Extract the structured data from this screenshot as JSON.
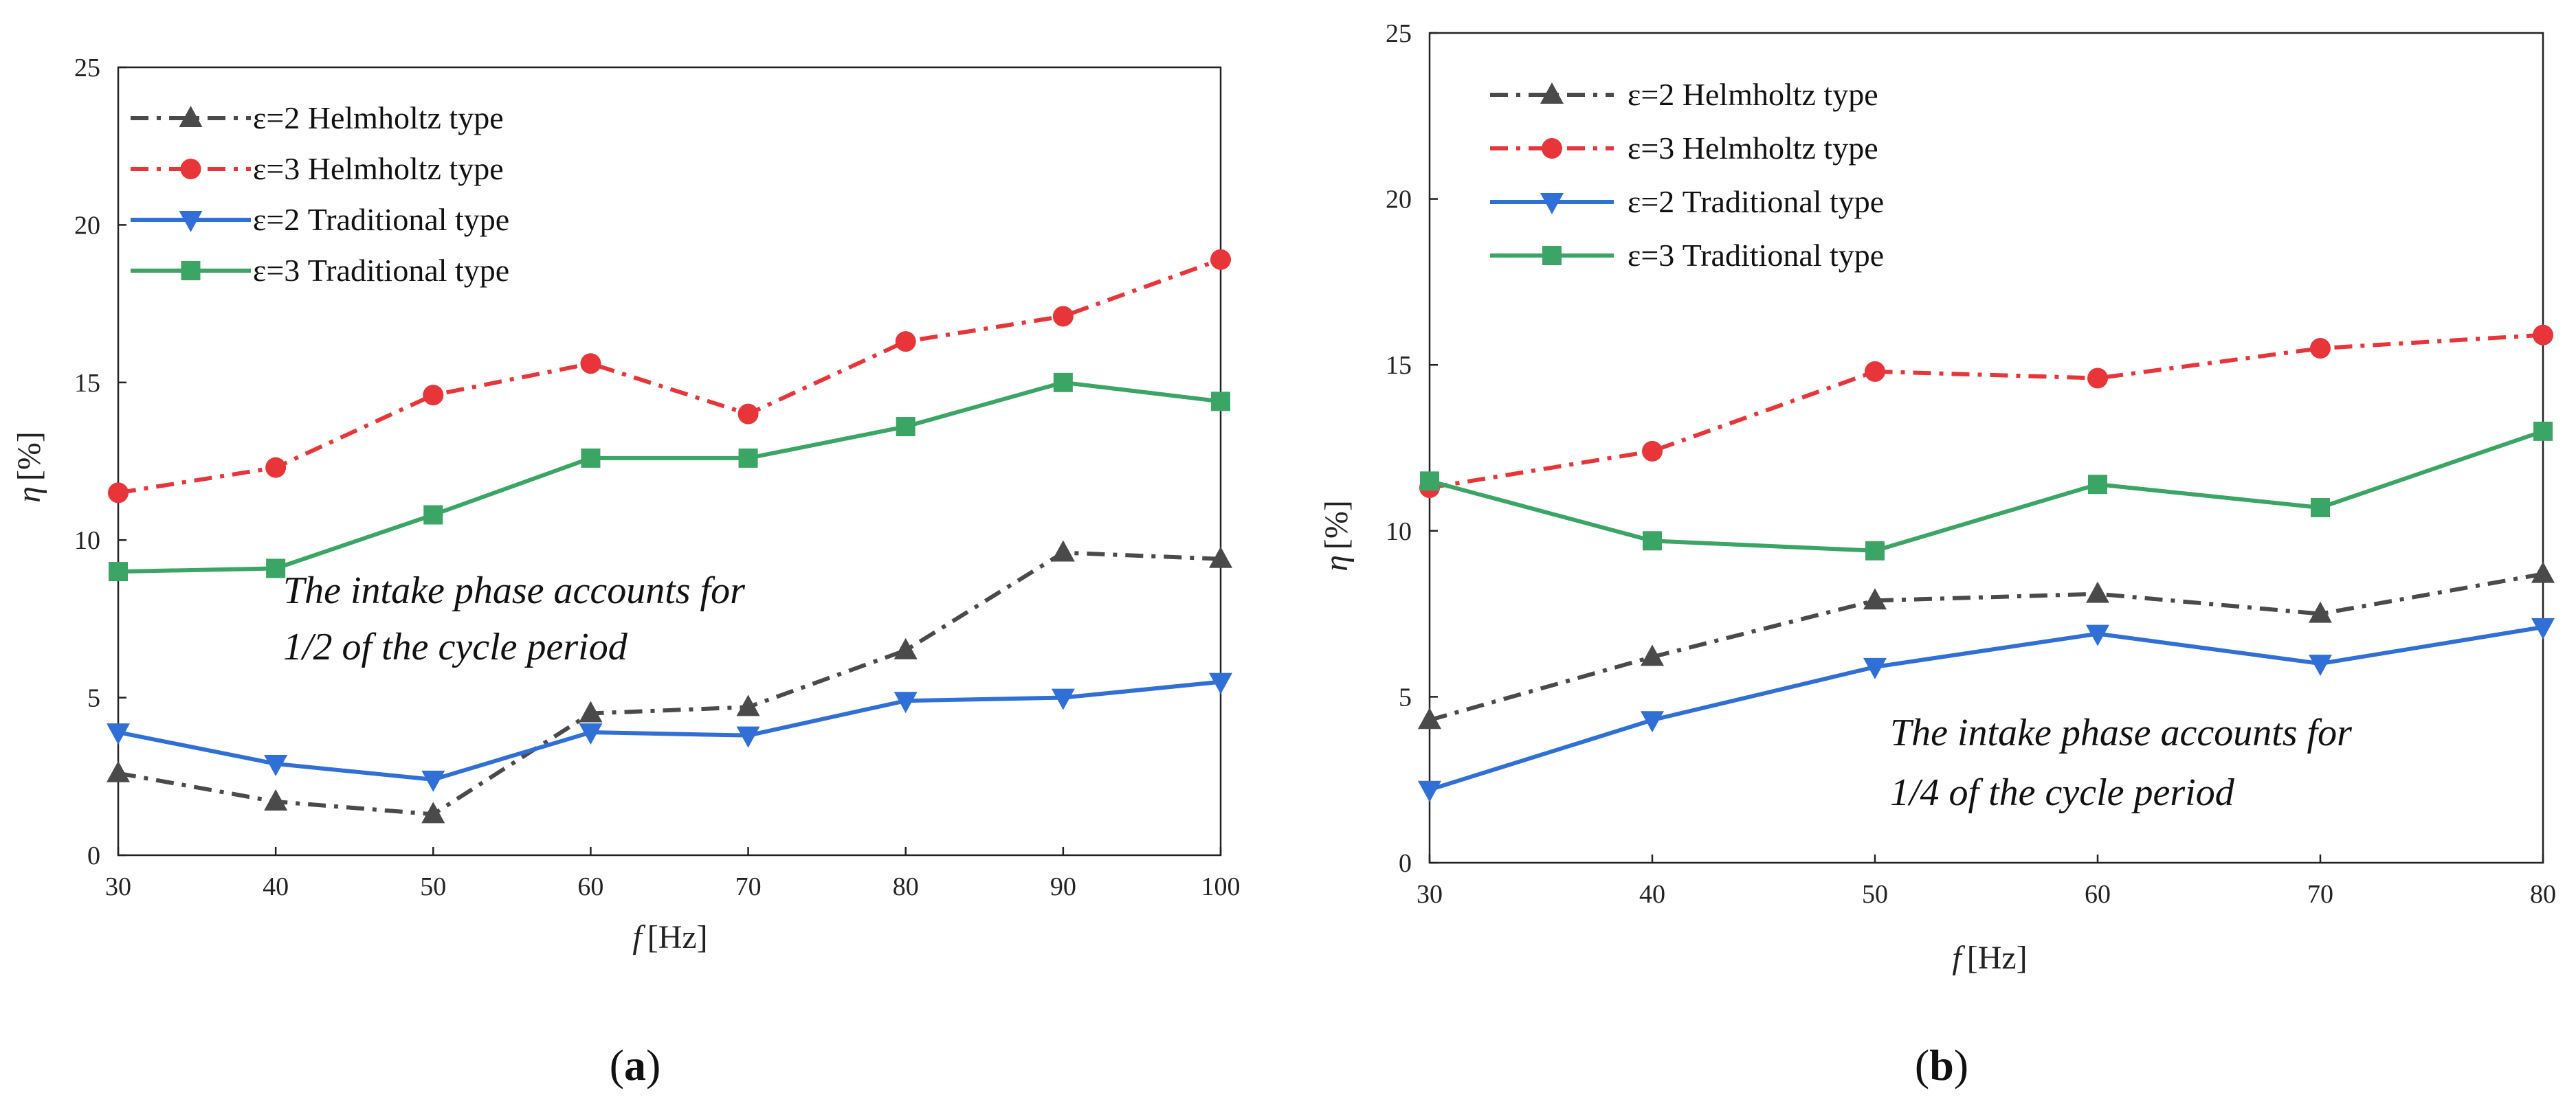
{
  "chart_data": [
    {
      "type": "line",
      "panel": "a",
      "caption": {
        "open": "(",
        "letter": "a",
        "close": ")"
      },
      "xlabel": {
        "symbol": "f",
        "unit": "[Hz]"
      },
      "ylabel": {
        "symbol": "η",
        "unit": "[%]"
      },
      "xlim": [
        30,
        100
      ],
      "ylim": [
        0,
        25
      ],
      "x": [
        30,
        40,
        50,
        60,
        70,
        80,
        90,
        100
      ],
      "xticks": [
        "30",
        "40",
        "50",
        "60",
        "70",
        "80",
        "90",
        "100"
      ],
      "yticks": [
        "0",
        "5",
        "10",
        "15",
        "20",
        "25"
      ],
      "legend_position": "top-left",
      "annotation": [
        "The intake phase accounts for",
        "1/2 of the cycle period"
      ],
      "series": [
        {
          "name": "ε=2 Helmholtz type",
          "color": "#4a4a4a",
          "marker": "triangle-up",
          "dash": "dashdot",
          "values": [
            2.6,
            1.7,
            1.3,
            4.5,
            4.7,
            6.5,
            9.6,
            9.4
          ]
        },
        {
          "name": "ε=3 Helmholtz type",
          "color": "#e8353a",
          "marker": "circle",
          "dash": "dashdot",
          "values": [
            11.5,
            12.3,
            14.6,
            15.6,
            14.0,
            16.3,
            17.1,
            18.9
          ]
        },
        {
          "name": "ε=2 Traditional type",
          "color": "#2f6fd6",
          "marker": "triangle-down",
          "dash": "solid",
          "values": [
            3.9,
            2.9,
            2.4,
            3.9,
            3.8,
            4.9,
            5.0,
            5.5
          ]
        },
        {
          "name": "ε=3 Traditional type",
          "color": "#3aa564",
          "marker": "square",
          "dash": "solid",
          "values": [
            9.0,
            9.1,
            10.8,
            12.6,
            12.6,
            13.6,
            15.0,
            14.4
          ]
        }
      ]
    },
    {
      "type": "line",
      "panel": "b",
      "caption": {
        "open": "(",
        "letter": "b",
        "close": ")"
      },
      "xlabel": {
        "symbol": "f",
        "unit": "[Hz]"
      },
      "ylabel": {
        "symbol": "η",
        "unit": "[%]"
      },
      "xlim": [
        30,
        80
      ],
      "ylim": [
        0,
        25
      ],
      "x": [
        30,
        40,
        50,
        60,
        70,
        80
      ],
      "xticks": [
        "30",
        "40",
        "50",
        "60",
        "70",
        "80"
      ],
      "yticks": [
        "0",
        "5",
        "10",
        "15",
        "20",
        "25"
      ],
      "legend_position": "top-left",
      "annotation": [
        "The intake phase accounts for",
        "1/4 of the cycle period"
      ],
      "series": [
        {
          "name": "ε=2 Helmholtz type",
          "color": "#4a4a4a",
          "marker": "triangle-up",
          "dash": "dashdot",
          "values": [
            4.3,
            6.2,
            7.9,
            8.1,
            7.5,
            8.7
          ]
        },
        {
          "name": "ε=3 Helmholtz type",
          "color": "#e8353a",
          "marker": "circle",
          "dash": "dashdot",
          "values": [
            11.3,
            12.4,
            14.8,
            14.6,
            15.5,
            15.9
          ]
        },
        {
          "name": "ε=2 Traditional type",
          "color": "#2f6fd6",
          "marker": "triangle-down",
          "dash": "solid",
          "values": [
            2.2,
            4.3,
            5.9,
            6.9,
            6.0,
            7.1
          ]
        },
        {
          "name": "ε=3 Traditional type",
          "color": "#3aa564",
          "marker": "square",
          "dash": "solid",
          "values": [
            11.5,
            9.7,
            9.4,
            11.4,
            10.7,
            13.0
          ]
        }
      ]
    }
  ]
}
